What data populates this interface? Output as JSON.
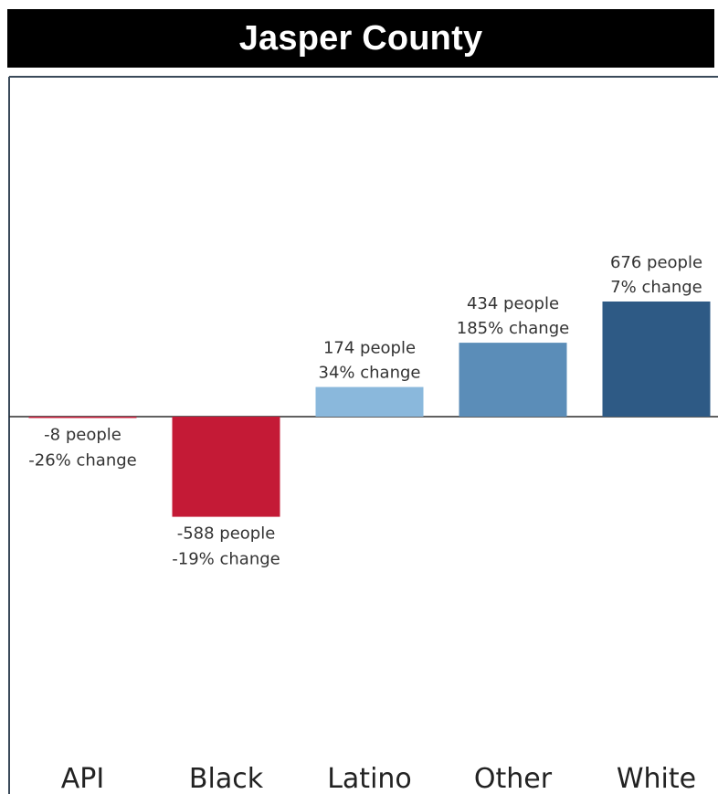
{
  "chart_data": {
    "type": "bar",
    "title": "Jasper County",
    "categories": [
      "API",
      "Black",
      "Latino",
      "Other",
      "White"
    ],
    "values": [
      -8,
      -588,
      174,
      434,
      676
    ],
    "percent_change": [
      -26,
      -19,
      34,
      185,
      7
    ],
    "labels": [
      [
        "-8 people",
        "-26% change"
      ],
      [
        "-588 people",
        "-19% change"
      ],
      [
        "174 people",
        "34% change"
      ],
      [
        "434 people",
        "185% change"
      ],
      [
        "676 people",
        "7% change"
      ]
    ],
    "colors": [
      "#c41a36",
      "#c41a36",
      "#8ab8dc",
      "#5b8db8",
      "#2e5a85"
    ],
    "ylim": [
      -700,
      700
    ],
    "grid": false
  }
}
